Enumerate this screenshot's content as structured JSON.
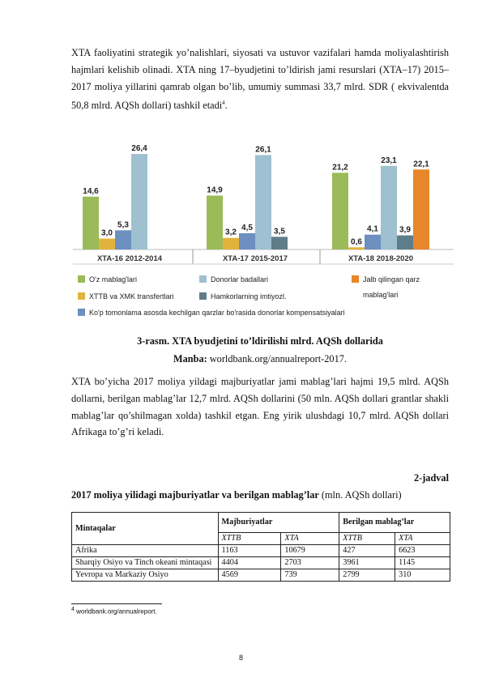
{
  "paragraph_1": "XTA faoliyatini strategik yo’nalishlari, siyosati va ustuvor vazifalari hamda moliyalashtirish hajmlari kelishib olinadi. XTA ning 17–byudjetini to’ldirish jami resurslari (XTA–17) 2015–2017 moliya yillarini qamrab olgan bo’lib, umumiy summasi 33,7 mlrd. SDR ( ekvivalentda 50,8 mlrd. AQSh dollari) tashkil etadi",
  "footnote_ref": "4",
  "chart_data": {
    "type": "bar",
    "categories": [
      "XTA-16 2012-2014",
      "XTA-17 2015-2017",
      "XTA-18 2018-2020"
    ],
    "series": [
      {
        "name": "O'z mablag'lari",
        "color": "#9bbb59",
        "values": [
          14.6,
          14.9,
          21.2
        ],
        "labels": [
          "14,6",
          "14,9",
          "21,2"
        ]
      },
      {
        "name": "XTTB va XMK transfertlari",
        "color": "#e2b33a",
        "values": [
          3.0,
          3.2,
          0.6
        ],
        "labels": [
          "3,0",
          "3,2",
          "0,6"
        ]
      },
      {
        "name": "Ko'p tomonlama asosda kechilgan qarzlar bo'rasida donorlar kompensatsiyalari",
        "color": "#6d8fc1",
        "values": [
          5.3,
          4.5,
          4.1
        ],
        "labels": [
          "5,3",
          "4,5",
          "4,1"
        ]
      },
      {
        "name": "Donorlar badallari",
        "color": "#9ec0d0",
        "values": [
          26.4,
          26.1,
          23.1
        ],
        "labels": [
          "26,4",
          "26,1",
          "23,1"
        ]
      },
      {
        "name": "Hamkorlarning imtiyozl.",
        "color": "#5e7d8a",
        "values": [
          null,
          3.5,
          3.9
        ],
        "labels": [
          "",
          "3,5",
          "3,9"
        ]
      },
      {
        "name": "Jalb qilingan qarz mablag'lari",
        "color": "#e8862a",
        "values": [
          null,
          null,
          22.1
        ],
        "labels": [
          "",
          "",
          "22,1"
        ]
      }
    ],
    "ylim": [
      0,
      30
    ],
    "grid": false,
    "legend_position": "bottom",
    "legend_rows": [
      [
        "O'z mablag'lari",
        "Donorlar badallari",
        "Jalb qilingan qarz"
      ],
      [
        "XTTB va XMK transfertlari",
        "Hamkorlarning imtiyozl.",
        "mablag'lari"
      ],
      [
        "Ko'p tomonlama asosda kechilgan qarzlar bo'rasida donorlar kompensatsiyalari"
      ]
    ]
  },
  "figure_caption": "3-rasm. XTA byudjetini to’ldirilishi mlrd. AQSh dollarida",
  "source_label": "Manba:",
  "source_text": " worldbank.org/annualreport-2017.",
  "paragraph_2": "XTA bo’yicha 2017 moliya yildagi majburiyatlar jami mablag’lari hajmi 19,5 mlrd. AQSh dollarni, berilgan mablag’lar   12,7 mlrd. AQSh dollarini (50 mln. AQSh dollari grantlar shakli mablag’lar qo’shilmagan xolda) tashkil etgan. Eng yirik ulushdagi 10,7 mlrd. AQSh dollari Afrikaga to’g’ri keladi.",
  "table_number": "2-jadval",
  "table_title_bold": "2017 moliya yilidagi majburiyatlar va berilgan mablag’lar",
  "table_title_unit": " (mln. AQSh dollari)",
  "table": {
    "header_region": "Mintaqalar",
    "header_groups": [
      "Majburiyatlar",
      "Berilgan mablag’lar"
    ],
    "sub_headers": [
      "XTTB",
      "XTA",
      "XTTB",
      "XTA"
    ],
    "rows": [
      {
        "region": "Afrika",
        "values": [
          "1163",
          "10679",
          "427",
          "6623"
        ]
      },
      {
        "region": "Sharqiy Osiyo va Tinch okeani mintaqasi",
        "values": [
          "4404",
          "2703",
          "3961",
          "1145"
        ]
      },
      {
        "region": "Yevropa va Markaziy Osiyo",
        "values": [
          "4569",
          "739",
          "2799",
          "310"
        ]
      }
    ]
  },
  "footnote_number": "4",
  "footnote_text": " worldbank.org/annualreport.",
  "page_number": "8"
}
